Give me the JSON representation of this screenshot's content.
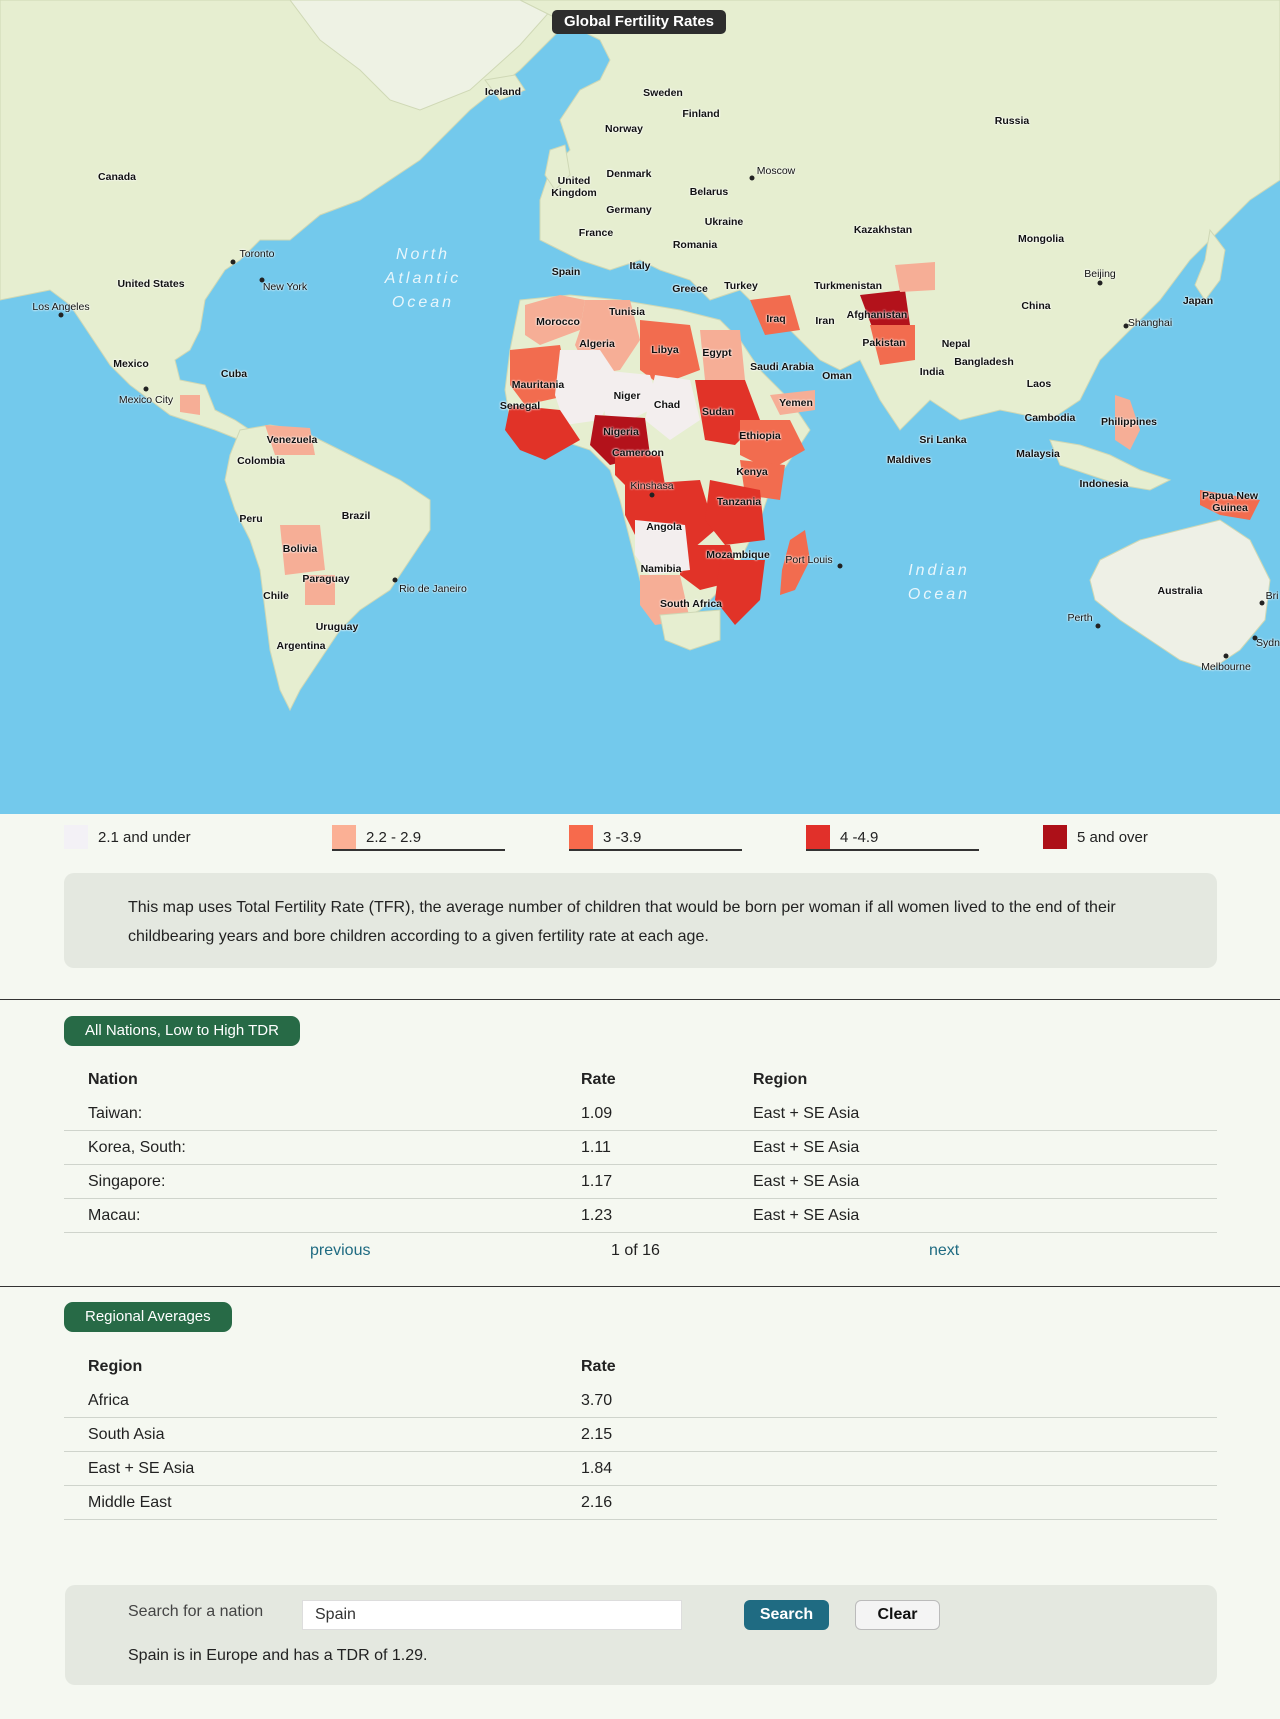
{
  "map": {
    "title": "Global Fertility Rates",
    "oceans": {
      "north_atlantic": "North\nAtlantic\nOcean",
      "indian": "Indian\nOcean"
    },
    "labels": {
      "iceland": "Iceland",
      "sweden": "Sweden",
      "finland": "Finland",
      "norway": "Norway",
      "russia": "Russia",
      "canada": "Canada",
      "moscow": "Moscow",
      "denmark": "Denmark",
      "united_kingdom": "United\nKingdom",
      "belarus": "Belarus",
      "germany": "Germany",
      "ukraine": "Ukraine",
      "france": "France",
      "kazakhstan": "Kazakhstan",
      "mongolia": "Mongolia",
      "romania": "Romania",
      "toronto": "Toronto",
      "italy": "Italy",
      "spain": "Spain",
      "united_states": "United States",
      "new_york": "New York",
      "greece": "Greece",
      "turkey": "Turkey",
      "turkmenistan": "Turkmenistan",
      "beijing": "Beijing",
      "los_angeles": "Los Angeles",
      "tunisia": "Tunisia",
      "afghanistan": "Afghanistan",
      "iraq": "Iraq",
      "iran": "Iran",
      "china": "China",
      "japan": "Japan",
      "morocco": "Morocco",
      "shanghai": "Shanghai",
      "algeria": "Algeria",
      "libya": "Libya",
      "pakistan": "Pakistan",
      "nepal": "Nepal",
      "egypt": "Egypt",
      "saudi_arabia": "Saudi Arabia",
      "bangladesh": "Bangladesh",
      "mexico": "Mexico",
      "cuba": "Cuba",
      "india": "India",
      "oman": "Oman",
      "mauritania": "Mauritania",
      "laos": "Laos",
      "mexico_city": "Mexico City",
      "niger": "Niger",
      "chad": "Chad",
      "yemen": "Yemen",
      "senegal": "Senegal",
      "sudan": "Sudan",
      "cambodia": "Cambodia",
      "philippines": "Philippines",
      "nigeria": "Nigeria",
      "ethiopia": "Ethiopia",
      "venezuela": "Venezuela",
      "sri_lanka": "Sri Lanka",
      "cameroon": "Cameroon",
      "malaysia": "Malaysia",
      "maldives": "Maldives",
      "colombia": "Colombia",
      "kenya": "Kenya",
      "indonesia": "Indonesia",
      "kinshasa": "Kinshasa",
      "papua_new_guinea": "Papua New\nGuinea",
      "tanzania": "Tanzania",
      "peru": "Peru",
      "brazil": "Brazil",
      "angola": "Angola",
      "bolivia": "Bolivia",
      "mozambique": "Mozambique",
      "port_louis": "Port Louis",
      "namibia": "Namibia",
      "paraguay": "Paraguay",
      "rio": "Rio de Janeiro",
      "australia": "Australia",
      "chile": "Chile",
      "south_africa": "South Africa",
      "perth": "Perth",
      "uruguay": "Uruguay",
      "argentina": "Argentina",
      "melbourne": "Melbourne",
      "sydney": "Sydn",
      "brisbane": "Bri"
    },
    "colors": {
      "ocean": "#73c9ec",
      "land": "#e6eed0",
      "land_dark": "#d9e6bd",
      "tfr_low": "#f3eeee",
      "tfr_2": "#f6ae96",
      "tfr_3": "#f26c4f",
      "tfr_4": "#e13328",
      "tfr_5": "#b3121b"
    }
  },
  "legend": [
    {
      "label": "2.1 and under",
      "color": "#f3f1f6"
    },
    {
      "label": "2.2 - 2.9",
      "color": "#fbb095"
    },
    {
      "label": "3 -3.9",
      "color": "#f76a4c"
    },
    {
      "label": "4 -4.9",
      "color": "#e1302a"
    },
    {
      "label": "5 and over",
      "color": "#ad1018"
    }
  ],
  "note": "This map uses Total Fertility Rate (TFR), the average number of children that would be born per woman if all women lived to the end of their childbearing years and bore children according to a given fertility rate at each age.",
  "nations": {
    "pill": "All Nations, Low to High TDR",
    "headers": [
      "Nation",
      "Rate",
      "Region"
    ],
    "rows": [
      [
        "Taiwan:",
        "1.09",
        "East + SE Asia"
      ],
      [
        "Korea, South:",
        "1.11",
        "East + SE Asia"
      ],
      [
        "Singapore:",
        "1.17",
        "East + SE Asia"
      ],
      [
        "Macau:",
        "1.23",
        "East + SE Asia"
      ]
    ],
    "pager": {
      "previous": "previous",
      "status": "1 of 16",
      "next": "next"
    }
  },
  "regional": {
    "pill": "Regional Averages",
    "headers": [
      "Region",
      "Rate"
    ],
    "rows": [
      [
        "Africa",
        "3.70"
      ],
      [
        "South Asia",
        "2.15"
      ],
      [
        "East + SE Asia",
        "1.84"
      ],
      [
        "Middle East",
        "2.16"
      ]
    ]
  },
  "search": {
    "label": "Search for a nation",
    "value": "Spain",
    "search_button": "Search",
    "clear_button": "Clear",
    "result": "Spain is in Europe and has a TDR of 1.29."
  }
}
